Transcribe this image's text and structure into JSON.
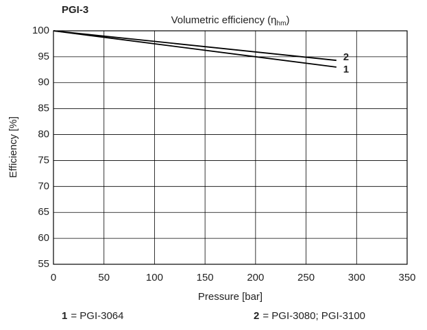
{
  "chart_data": {
    "type": "line",
    "header": "PGI-3",
    "title": "Volumetric efficiency (η",
    "title_subscript": "hm",
    "title_end": ")",
    "x_label": "Pressure [bar]",
    "y_label": "Efficiency [%]",
    "x": [
      0,
      280
    ],
    "series": [
      {
        "name": "PGI-3064",
        "label": "1",
        "legend_text": "= PGI-3064",
        "color": "#000000",
        "values": [
          100,
          93
        ]
      },
      {
        "name": "PGI-3080; PGI-3100",
        "label": "2",
        "legend_text": "= PGI-3080; PGI-3100",
        "color": "#000000",
        "values": [
          100,
          94.3
        ]
      }
    ],
    "xlim": [
      0,
      350
    ],
    "xticks": [
      0,
      50,
      100,
      150,
      200,
      250,
      300,
      350
    ],
    "ylim": [
      55,
      100
    ],
    "yticks": [
      55,
      60,
      65,
      70,
      75,
      80,
      85,
      90,
      95,
      100
    ],
    "grid": true
  }
}
